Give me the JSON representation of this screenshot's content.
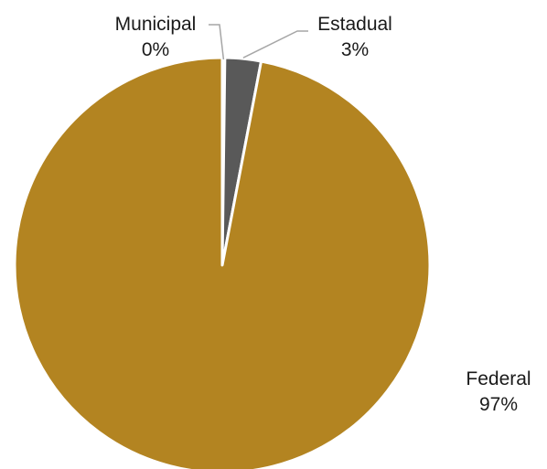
{
  "chart_data": {
    "type": "pie",
    "title": "",
    "slices": [
      {
        "label": "Municipal",
        "value": 0.2,
        "display": "0%",
        "color": "#ffffff"
      },
      {
        "label": "Estadual",
        "value": 2.8,
        "display": "3%",
        "color": "#595959"
      },
      {
        "label": "Federal",
        "value": 97.0,
        "display": "97%",
        "color": "#b38421"
      }
    ],
    "slice_border_color": "#ffffff",
    "leader_line_color": "#a6a6a6",
    "legend": "none"
  }
}
